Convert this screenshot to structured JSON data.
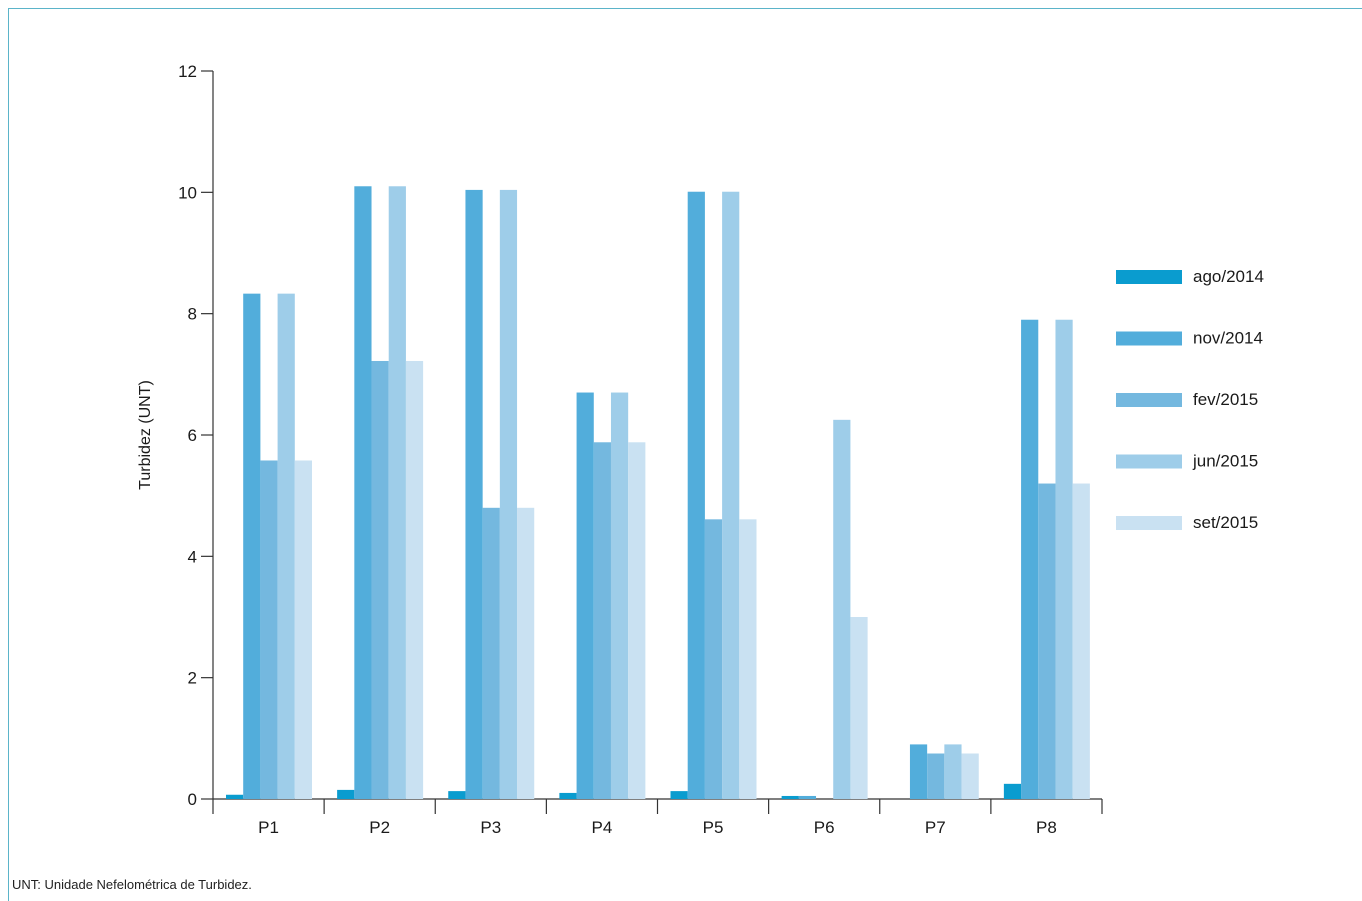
{
  "chart_data": {
    "type": "bar",
    "title": "",
    "xlabel": "",
    "ylabel": "Turbidez (UNT)",
    "ylim": [
      0,
      12
    ],
    "yticks": [
      "0",
      "2",
      "4",
      "6",
      "8",
      "10",
      "12"
    ],
    "categories": [
      "P1",
      "P2",
      "P3",
      "P4",
      "P5",
      "P6",
      "P7",
      "P8"
    ],
    "series": [
      {
        "name": "ago/2014",
        "color": "#0a9ccf",
        "values": [
          0.07,
          0.15,
          0.13,
          0.1,
          0.13,
          0.05,
          0.0,
          0.25
        ]
      },
      {
        "name": "nov/2014",
        "color": "#52addb",
        "values": [
          8.33,
          10.1,
          10.04,
          6.7,
          10.01,
          0.05,
          0.9,
          7.9
        ]
      },
      {
        "name": "fev/2015",
        "color": "#74b8df",
        "values": [
          5.58,
          7.22,
          4.8,
          5.88,
          4.61,
          0.0,
          0.75,
          5.2
        ]
      },
      {
        "name": "jun/2015",
        "color": "#9ecde9",
        "values": [
          8.33,
          10.1,
          10.04,
          6.7,
          10.01,
          6.25,
          0.9,
          7.9
        ]
      },
      {
        "name": "set/2015",
        "color": "#c9e1f2",
        "values": [
          5.58,
          7.22,
          4.8,
          5.88,
          4.61,
          3.0,
          0.75,
          5.2
        ]
      }
    ],
    "legend_position": "right",
    "grid": false
  },
  "footnote": "UNT: Unidade Nefelométrica de Turbidez."
}
